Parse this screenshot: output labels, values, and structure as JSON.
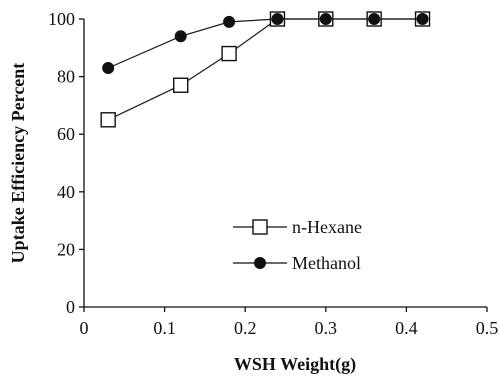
{
  "chart_data": {
    "type": "line",
    "title": "",
    "xlabel": "WSH Weight(g)",
    "ylabel": "Uptake Efficiency Percent",
    "xlim": [
      0,
      0.5
    ],
    "ylim": [
      0,
      100
    ],
    "xticks": [
      0,
      0.1,
      0.2,
      0.3,
      0.4,
      0.5
    ],
    "xtick_labels": [
      "0",
      "0.1",
      "0.2",
      "0.3",
      "0.4",
      "0.5"
    ],
    "yticks": [
      0,
      20,
      40,
      60,
      80,
      100
    ],
    "ytick_labels": [
      "0",
      "20",
      "40",
      "60",
      "80",
      "100"
    ],
    "grid": false,
    "legend_position": "lower-right",
    "series": [
      {
        "name": "n-Hexane",
        "marker": "open-square",
        "color": "#1a1a1a",
        "x": [
          0.03,
          0.12,
          0.18,
          0.24,
          0.3,
          0.36,
          0.42
        ],
        "y": [
          65,
          77,
          88,
          100,
          100,
          100,
          100
        ]
      },
      {
        "name": "Methanol",
        "marker": "filled-circle",
        "color": "#1a1a1a",
        "x": [
          0.03,
          0.12,
          0.18,
          0.24,
          0.3,
          0.36,
          0.42
        ],
        "y": [
          83,
          94,
          99,
          100,
          100,
          100,
          100
        ]
      }
    ]
  }
}
